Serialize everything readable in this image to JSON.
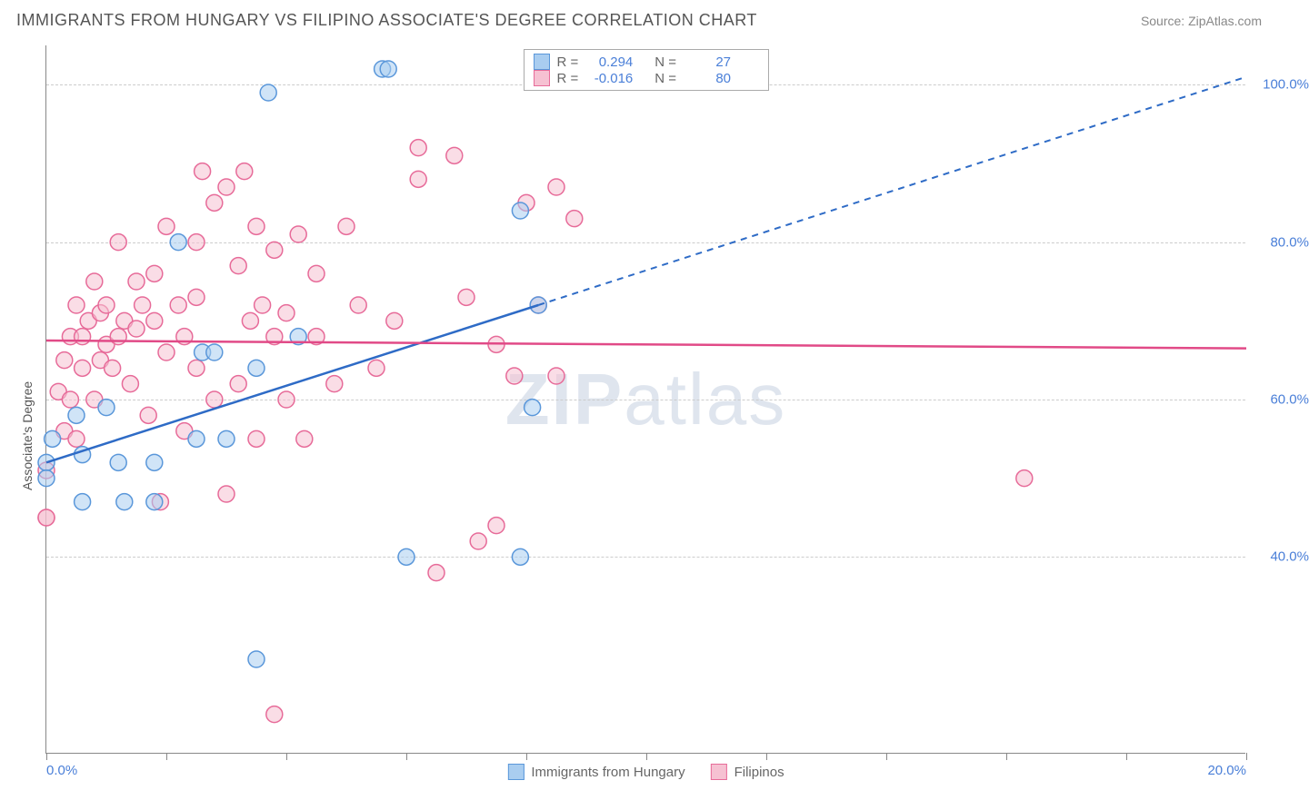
{
  "header": {
    "title": "IMMIGRANTS FROM HUNGARY VS FILIPINO ASSOCIATE'S DEGREE CORRELATION CHART",
    "source_label": "Source:",
    "source_name": "ZipAtlas.com"
  },
  "watermark": {
    "left": "ZIP",
    "right": "atlas"
  },
  "chart": {
    "type": "scatter",
    "background_color": "#ffffff",
    "grid_color": "#cccccc",
    "axis_color": "#888888",
    "y_axis_label": "Associate's Degree",
    "x_range": [
      0,
      20
    ],
    "y_range": [
      15,
      105
    ],
    "y_ticks": [
      40,
      60,
      80,
      100
    ],
    "y_tick_labels": [
      "40.0%",
      "60.0%",
      "80.0%",
      "100.0%"
    ],
    "x_ticks": [
      0,
      10,
      20
    ],
    "x_tick_labels": [
      "0.0%",
      "",
      "20.0%"
    ],
    "x_minor_ticks": [
      2,
      4,
      6,
      8,
      10,
      12,
      14,
      16,
      18
    ],
    "tick_label_color": "#4a7fd8",
    "marker_radius": 9,
    "marker_opacity": 0.55,
    "line_width": 2.5,
    "series": [
      {
        "name": "Immigrants from Hungary",
        "fill_color": "#a9cdf0",
        "stroke_color": "#5a97da",
        "trend_color": "#2e6bc6",
        "R": "0.294",
        "N": "27",
        "trend": {
          "x1": 0,
          "y1": 52,
          "x2": 8.2,
          "y2": 72,
          "dash_to_x": 20,
          "dash_to_y": 101
        },
        "points": [
          [
            0.0,
            52
          ],
          [
            0.0,
            50
          ],
          [
            0.1,
            55
          ],
          [
            0.5,
            58
          ],
          [
            0.6,
            53
          ],
          [
            0.6,
            47
          ],
          [
            1.0,
            59
          ],
          [
            1.2,
            52
          ],
          [
            1.3,
            47
          ],
          [
            1.8,
            52
          ],
          [
            1.8,
            47
          ],
          [
            2.2,
            80
          ],
          [
            2.5,
            55
          ],
          [
            2.6,
            66
          ],
          [
            2.8,
            66
          ],
          [
            3.0,
            55
          ],
          [
            3.5,
            64
          ],
          [
            3.5,
            27
          ],
          [
            3.7,
            99
          ],
          [
            4.2,
            68
          ],
          [
            5.6,
            102
          ],
          [
            5.7,
            102
          ],
          [
            6.0,
            40
          ],
          [
            7.9,
            40
          ],
          [
            7.9,
            84
          ],
          [
            8.1,
            59
          ],
          [
            8.2,
            72
          ]
        ]
      },
      {
        "name": "Filipinos",
        "fill_color": "#f6c1d2",
        "stroke_color": "#e76b99",
        "trend_color": "#e14a87",
        "R": "-0.016",
        "N": "80",
        "trend": {
          "x1": 0,
          "y1": 67.5,
          "x2": 20,
          "y2": 66.5
        },
        "points": [
          [
            0.0,
            51
          ],
          [
            0.0,
            45
          ],
          [
            0.0,
            45
          ],
          [
            0.2,
            61
          ],
          [
            0.3,
            56
          ],
          [
            0.3,
            65
          ],
          [
            0.4,
            68
          ],
          [
            0.4,
            60
          ],
          [
            0.5,
            55
          ],
          [
            0.5,
            72
          ],
          [
            0.6,
            68
          ],
          [
            0.6,
            64
          ],
          [
            0.7,
            70
          ],
          [
            0.8,
            60
          ],
          [
            0.8,
            75
          ],
          [
            0.9,
            71
          ],
          [
            0.9,
            65
          ],
          [
            1.0,
            67
          ],
          [
            1.0,
            72
          ],
          [
            1.1,
            64
          ],
          [
            1.2,
            80
          ],
          [
            1.2,
            68
          ],
          [
            1.3,
            70
          ],
          [
            1.4,
            62
          ],
          [
            1.5,
            75
          ],
          [
            1.5,
            69
          ],
          [
            1.6,
            72
          ],
          [
            1.7,
            58
          ],
          [
            1.8,
            76
          ],
          [
            1.8,
            70
          ],
          [
            1.9,
            47
          ],
          [
            2.0,
            66
          ],
          [
            2.0,
            82
          ],
          [
            2.2,
            72
          ],
          [
            2.3,
            56
          ],
          [
            2.3,
            68
          ],
          [
            2.5,
            73
          ],
          [
            2.5,
            64
          ],
          [
            2.5,
            80
          ],
          [
            2.6,
            89
          ],
          [
            2.8,
            85
          ],
          [
            2.8,
            60
          ],
          [
            3.0,
            48
          ],
          [
            3.0,
            87
          ],
          [
            3.2,
            77
          ],
          [
            3.2,
            62
          ],
          [
            3.3,
            89
          ],
          [
            3.4,
            70
          ],
          [
            3.5,
            82
          ],
          [
            3.5,
            55
          ],
          [
            3.6,
            72
          ],
          [
            3.8,
            79
          ],
          [
            3.8,
            68
          ],
          [
            3.8,
            20
          ],
          [
            4.0,
            71
          ],
          [
            4.0,
            60
          ],
          [
            4.2,
            81
          ],
          [
            4.3,
            55
          ],
          [
            4.5,
            68
          ],
          [
            4.5,
            76
          ],
          [
            4.8,
            62
          ],
          [
            5.0,
            82
          ],
          [
            5.2,
            72
          ],
          [
            5.5,
            64
          ],
          [
            5.8,
            70
          ],
          [
            6.2,
            92
          ],
          [
            6.5,
            38
          ],
          [
            6.8,
            91
          ],
          [
            7.0,
            73
          ],
          [
            7.2,
            42
          ],
          [
            7.5,
            67
          ],
          [
            7.8,
            63
          ],
          [
            8.0,
            85
          ],
          [
            8.2,
            72
          ],
          [
            8.5,
            63
          ],
          [
            8.5,
            87
          ],
          [
            8.8,
            83
          ],
          [
            16.3,
            50
          ],
          [
            7.5,
            44
          ],
          [
            6.2,
            88
          ]
        ]
      }
    ],
    "legend_top": {
      "r_label": "R =",
      "n_label": "N ="
    }
  }
}
